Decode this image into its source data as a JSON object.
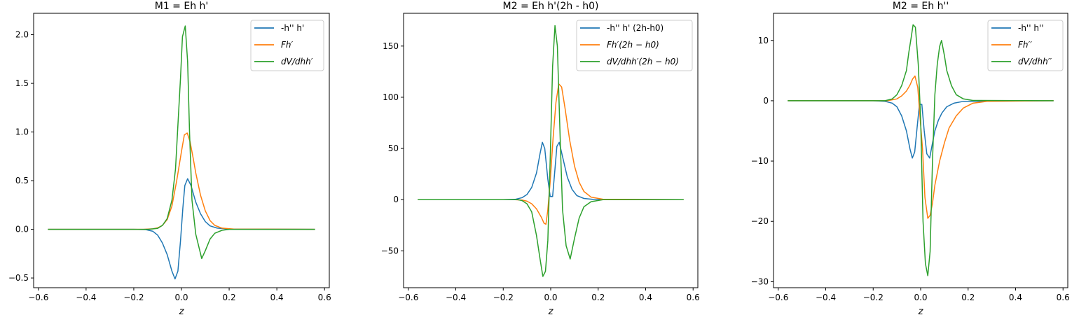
{
  "chart_data": [
    {
      "type": "line",
      "title": "M1 = Eh h'",
      "xlabel": "z",
      "ylabel": "",
      "xlim": [
        -0.62,
        0.62
      ],
      "ylim": [
        -0.6,
        2.22
      ],
      "xticks": [
        -0.6,
        -0.4,
        -0.2,
        0.0,
        0.2,
        0.4,
        0.6
      ],
      "xtick_labels": [
        "−0.6",
        "−0.4",
        "−0.2",
        "0.0",
        "0.2",
        "0.4",
        "0.6"
      ],
      "yticks": [
        -0.5,
        0.0,
        0.5,
        1.0,
        1.5,
        2.0
      ],
      "ytick_labels": [
        "−0.5",
        "0.0",
        "0.5",
        "1.0",
        "1.5",
        "2.0"
      ],
      "legend_position": "top-right",
      "series": [
        {
          "name": "-h'' h'",
          "color": "#1f77b4",
          "points": [
            [
              -0.56,
              0
            ],
            [
              -0.2,
              0
            ],
            [
              -0.15,
              -0.003
            ],
            [
              -0.12,
              -0.02
            ],
            [
              -0.1,
              -0.06
            ],
            [
              -0.08,
              -0.14
            ],
            [
              -0.06,
              -0.26
            ],
            [
              -0.04,
              -0.43
            ],
            [
              -0.027,
              -0.51
            ],
            [
              -0.015,
              -0.43
            ],
            [
              -0.004,
              -0.12
            ],
            [
              0.006,
              0.22
            ],
            [
              0.014,
              0.45
            ],
            [
              0.026,
              0.52
            ],
            [
              0.04,
              0.45
            ],
            [
              0.06,
              0.28
            ],
            [
              0.08,
              0.16
            ],
            [
              0.1,
              0.08
            ],
            [
              0.12,
              0.035
            ],
            [
              0.15,
              0.012
            ],
            [
              0.2,
              0.002
            ],
            [
              0.56,
              0
            ]
          ]
        },
        {
          "name": "Fh′",
          "color": "#ff7f0e",
          "points": [
            [
              -0.56,
              0
            ],
            [
              -0.16,
              0
            ],
            [
              -0.12,
              0.005
            ],
            [
              -0.1,
              0.015
            ],
            [
              -0.08,
              0.04
            ],
            [
              -0.06,
              0.1
            ],
            [
              -0.04,
              0.24
            ],
            [
              -0.02,
              0.5
            ],
            [
              0.0,
              0.8
            ],
            [
              0.012,
              0.97
            ],
            [
              0.024,
              0.99
            ],
            [
              0.036,
              0.9
            ],
            [
              0.05,
              0.72
            ],
            [
              0.06,
              0.58
            ],
            [
              0.08,
              0.35
            ],
            [
              0.1,
              0.19
            ],
            [
              0.12,
              0.09
            ],
            [
              0.14,
              0.04
            ],
            [
              0.17,
              0.012
            ],
            [
              0.22,
              0.002
            ],
            [
              0.56,
              0
            ]
          ]
        },
        {
          "name": "dV/dhh′",
          "color": "#2ca02c",
          "points": [
            [
              -0.56,
              0
            ],
            [
              -0.14,
              0
            ],
            [
              -0.1,
              0.01
            ],
            [
              -0.08,
              0.04
            ],
            [
              -0.06,
              0.11
            ],
            [
              -0.04,
              0.3
            ],
            [
              -0.025,
              0.62
            ],
            [
              -0.012,
              1.2
            ],
            [
              -0.004,
              1.55
            ],
            [
              0.004,
              1.98
            ],
            [
              0.016,
              2.09
            ],
            [
              0.026,
              1.72
            ],
            [
              0.034,
              0.98
            ],
            [
              0.044,
              0.3
            ],
            [
              0.06,
              -0.05
            ],
            [
              0.075,
              -0.2
            ],
            [
              0.085,
              -0.3
            ],
            [
              0.1,
              -0.22
            ],
            [
              0.12,
              -0.1
            ],
            [
              0.14,
              -0.04
            ],
            [
              0.17,
              -0.01
            ],
            [
              0.2,
              0
            ],
            [
              0.56,
              0
            ]
          ]
        }
      ]
    },
    {
      "type": "line",
      "title": "M2 = Eh h'(2h - h0)",
      "xlabel": "z",
      "ylabel": "",
      "xlim": [
        -0.62,
        0.62
      ],
      "ylim": [
        -86,
        182
      ],
      "xticks": [
        -0.6,
        -0.4,
        -0.2,
        0.0,
        0.2,
        0.4,
        0.6
      ],
      "xtick_labels": [
        "−0.6",
        "−0.4",
        "−0.2",
        "0.0",
        "0.2",
        "0.4",
        "0.6"
      ],
      "yticks": [
        -50,
        0,
        50,
        100,
        150
      ],
      "ytick_labels": [
        "−50",
        "0",
        "50",
        "100",
        "150"
      ],
      "legend_position": "top-right",
      "series": [
        {
          "name": "-h'' h' (2h-h0)",
          "color": "#1f77b4",
          "points": [
            [
              -0.56,
              0
            ],
            [
              -0.2,
              0
            ],
            [
              -0.15,
              0.3
            ],
            [
              -0.12,
              2
            ],
            [
              -0.1,
              5
            ],
            [
              -0.08,
              12
            ],
            [
              -0.06,
              26
            ],
            [
              -0.045,
              45
            ],
            [
              -0.035,
              56
            ],
            [
              -0.025,
              50
            ],
            [
              -0.012,
              20
            ],
            [
              -0.002,
              3
            ],
            [
              0.008,
              3
            ],
            [
              0.018,
              30
            ],
            [
              0.026,
              52
            ],
            [
              0.036,
              56
            ],
            [
              0.05,
              42
            ],
            [
              0.07,
              22
            ],
            [
              0.09,
              10
            ],
            [
              0.11,
              4
            ],
            [
              0.14,
              1.2
            ],
            [
              0.18,
              0.2
            ],
            [
              0.56,
              0
            ]
          ]
        },
        {
          "name": "Fh′(2h − h0)",
          "color": "#ff7f0e",
          "points": [
            [
              -0.56,
              0
            ],
            [
              -0.15,
              0
            ],
            [
              -0.12,
              -0.5
            ],
            [
              -0.1,
              -1.5
            ],
            [
              -0.08,
              -4
            ],
            [
              -0.06,
              -9
            ],
            [
              -0.04,
              -17
            ],
            [
              -0.028,
              -23
            ],
            [
              -0.02,
              -24
            ],
            [
              -0.012,
              -10
            ],
            [
              -0.002,
              18
            ],
            [
              0.01,
              60
            ],
            [
              0.022,
              95
            ],
            [
              0.034,
              113
            ],
            [
              0.046,
              110
            ],
            [
              0.06,
              90
            ],
            [
              0.08,
              58
            ],
            [
              0.1,
              33
            ],
            [
              0.12,
              17
            ],
            [
              0.14,
              8
            ],
            [
              0.17,
              2.5
            ],
            [
              0.22,
              0.4
            ],
            [
              0.56,
              0
            ]
          ]
        },
        {
          "name": "dV/dhh′(2h − h0)",
          "color": "#2ca02c",
          "points": [
            [
              -0.56,
              0
            ],
            [
              -0.14,
              0
            ],
            [
              -0.12,
              -1
            ],
            [
              -0.1,
              -4
            ],
            [
              -0.08,
              -12
            ],
            [
              -0.06,
              -35
            ],
            [
              -0.045,
              -58
            ],
            [
              -0.033,
              -75
            ],
            [
              -0.022,
              -70
            ],
            [
              -0.012,
              -40
            ],
            [
              -0.002,
              40
            ],
            [
              0.008,
              130
            ],
            [
              0.018,
              170
            ],
            [
              0.028,
              150
            ],
            [
              0.04,
              60
            ],
            [
              0.05,
              -10
            ],
            [
              0.065,
              -45
            ],
            [
              0.082,
              -58
            ],
            [
              0.1,
              -38
            ],
            [
              0.12,
              -18
            ],
            [
              0.14,
              -7
            ],
            [
              0.17,
              -2
            ],
            [
              0.22,
              0
            ],
            [
              0.56,
              0
            ]
          ]
        }
      ]
    },
    {
      "type": "line",
      "title": "M2 = Eh h''",
      "xlabel": "z",
      "ylabel": "",
      "xlim": [
        -0.62,
        0.62
      ],
      "ylim": [
        -31,
        14.5
      ],
      "xticks": [
        -0.6,
        -0.4,
        -0.2,
        0.0,
        0.2,
        0.4,
        0.6
      ],
      "xtick_labels": [
        "−0.6",
        "−0.4",
        "−0.2",
        "0.0",
        "0.2",
        "0.4",
        "0.6"
      ],
      "yticks": [
        -30,
        -20,
        -10,
        0,
        10
      ],
      "ytick_labels": [
        "−30",
        "−20",
        "−10",
        "0",
        "10"
      ],
      "legend_position": "top-right",
      "series": [
        {
          "name": "-h'' h''",
          "color": "#1f77b4",
          "points": [
            [
              -0.56,
              0
            ],
            [
              -0.2,
              0
            ],
            [
              -0.15,
              -0.1
            ],
            [
              -0.12,
              -0.4
            ],
            [
              -0.1,
              -1
            ],
            [
              -0.08,
              -2.5
            ],
            [
              -0.06,
              -5
            ],
            [
              -0.045,
              -8
            ],
            [
              -0.035,
              -9.5
            ],
            [
              -0.025,
              -8.5
            ],
            [
              -0.015,
              -4.5
            ],
            [
              -0.005,
              -0.6
            ],
            [
              0.005,
              -0.6
            ],
            [
              0.015,
              -5
            ],
            [
              0.026,
              -8.8
            ],
            [
              0.038,
              -9.5
            ],
            [
              0.05,
              -7
            ],
            [
              0.06,
              -5
            ],
            [
              0.075,
              -3.2
            ],
            [
              0.09,
              -2
            ],
            [
              0.11,
              -1
            ],
            [
              0.14,
              -0.4
            ],
            [
              0.18,
              -0.1
            ],
            [
              0.56,
              0
            ]
          ]
        },
        {
          "name": "Fh′′",
          "color": "#ff7f0e",
          "points": [
            [
              -0.56,
              0
            ],
            [
              -0.14,
              0
            ],
            [
              -0.1,
              0.3
            ],
            [
              -0.08,
              0.8
            ],
            [
              -0.06,
              1.6
            ],
            [
              -0.045,
              2.6
            ],
            [
              -0.034,
              3.6
            ],
            [
              -0.024,
              4.1
            ],
            [
              -0.012,
              2.2
            ],
            [
              -0.002,
              -3
            ],
            [
              0.008,
              -8
            ],
            [
              0.018,
              -16
            ],
            [
              0.03,
              -19.5
            ],
            [
              0.04,
              -19
            ],
            [
              0.05,
              -17
            ],
            [
              0.06,
              -14
            ],
            [
              0.08,
              -10
            ],
            [
              0.1,
              -7
            ],
            [
              0.12,
              -4.5
            ],
            [
              0.15,
              -2.5
            ],
            [
              0.18,
              -1.2
            ],
            [
              0.22,
              -0.4
            ],
            [
              0.28,
              -0.1
            ],
            [
              0.56,
              0
            ]
          ]
        },
        {
          "name": "dV/dhh′′",
          "color": "#2ca02c",
          "points": [
            [
              -0.56,
              0
            ],
            [
              -0.15,
              0
            ],
            [
              -0.12,
              0.3
            ],
            [
              -0.1,
              1
            ],
            [
              -0.08,
              2.5
            ],
            [
              -0.06,
              5
            ],
            [
              -0.05,
              8
            ],
            [
              -0.04,
              10.5
            ],
            [
              -0.032,
              12.6
            ],
            [
              -0.022,
              12.2
            ],
            [
              -0.01,
              6
            ],
            [
              0.0,
              -3
            ],
            [
              0.01,
              -20
            ],
            [
              0.02,
              -27
            ],
            [
              0.03,
              -29
            ],
            [
              0.04,
              -25
            ],
            [
              0.05,
              -10
            ],
            [
              0.06,
              1
            ],
            [
              0.07,
              6
            ],
            [
              0.08,
              9
            ],
            [
              0.088,
              10
            ],
            [
              0.1,
              7.5
            ],
            [
              0.11,
              5
            ],
            [
              0.13,
              2.5
            ],
            [
              0.15,
              1
            ],
            [
              0.18,
              0.3
            ],
            [
              0.22,
              0.05
            ],
            [
              0.56,
              0
            ]
          ]
        }
      ]
    }
  ]
}
